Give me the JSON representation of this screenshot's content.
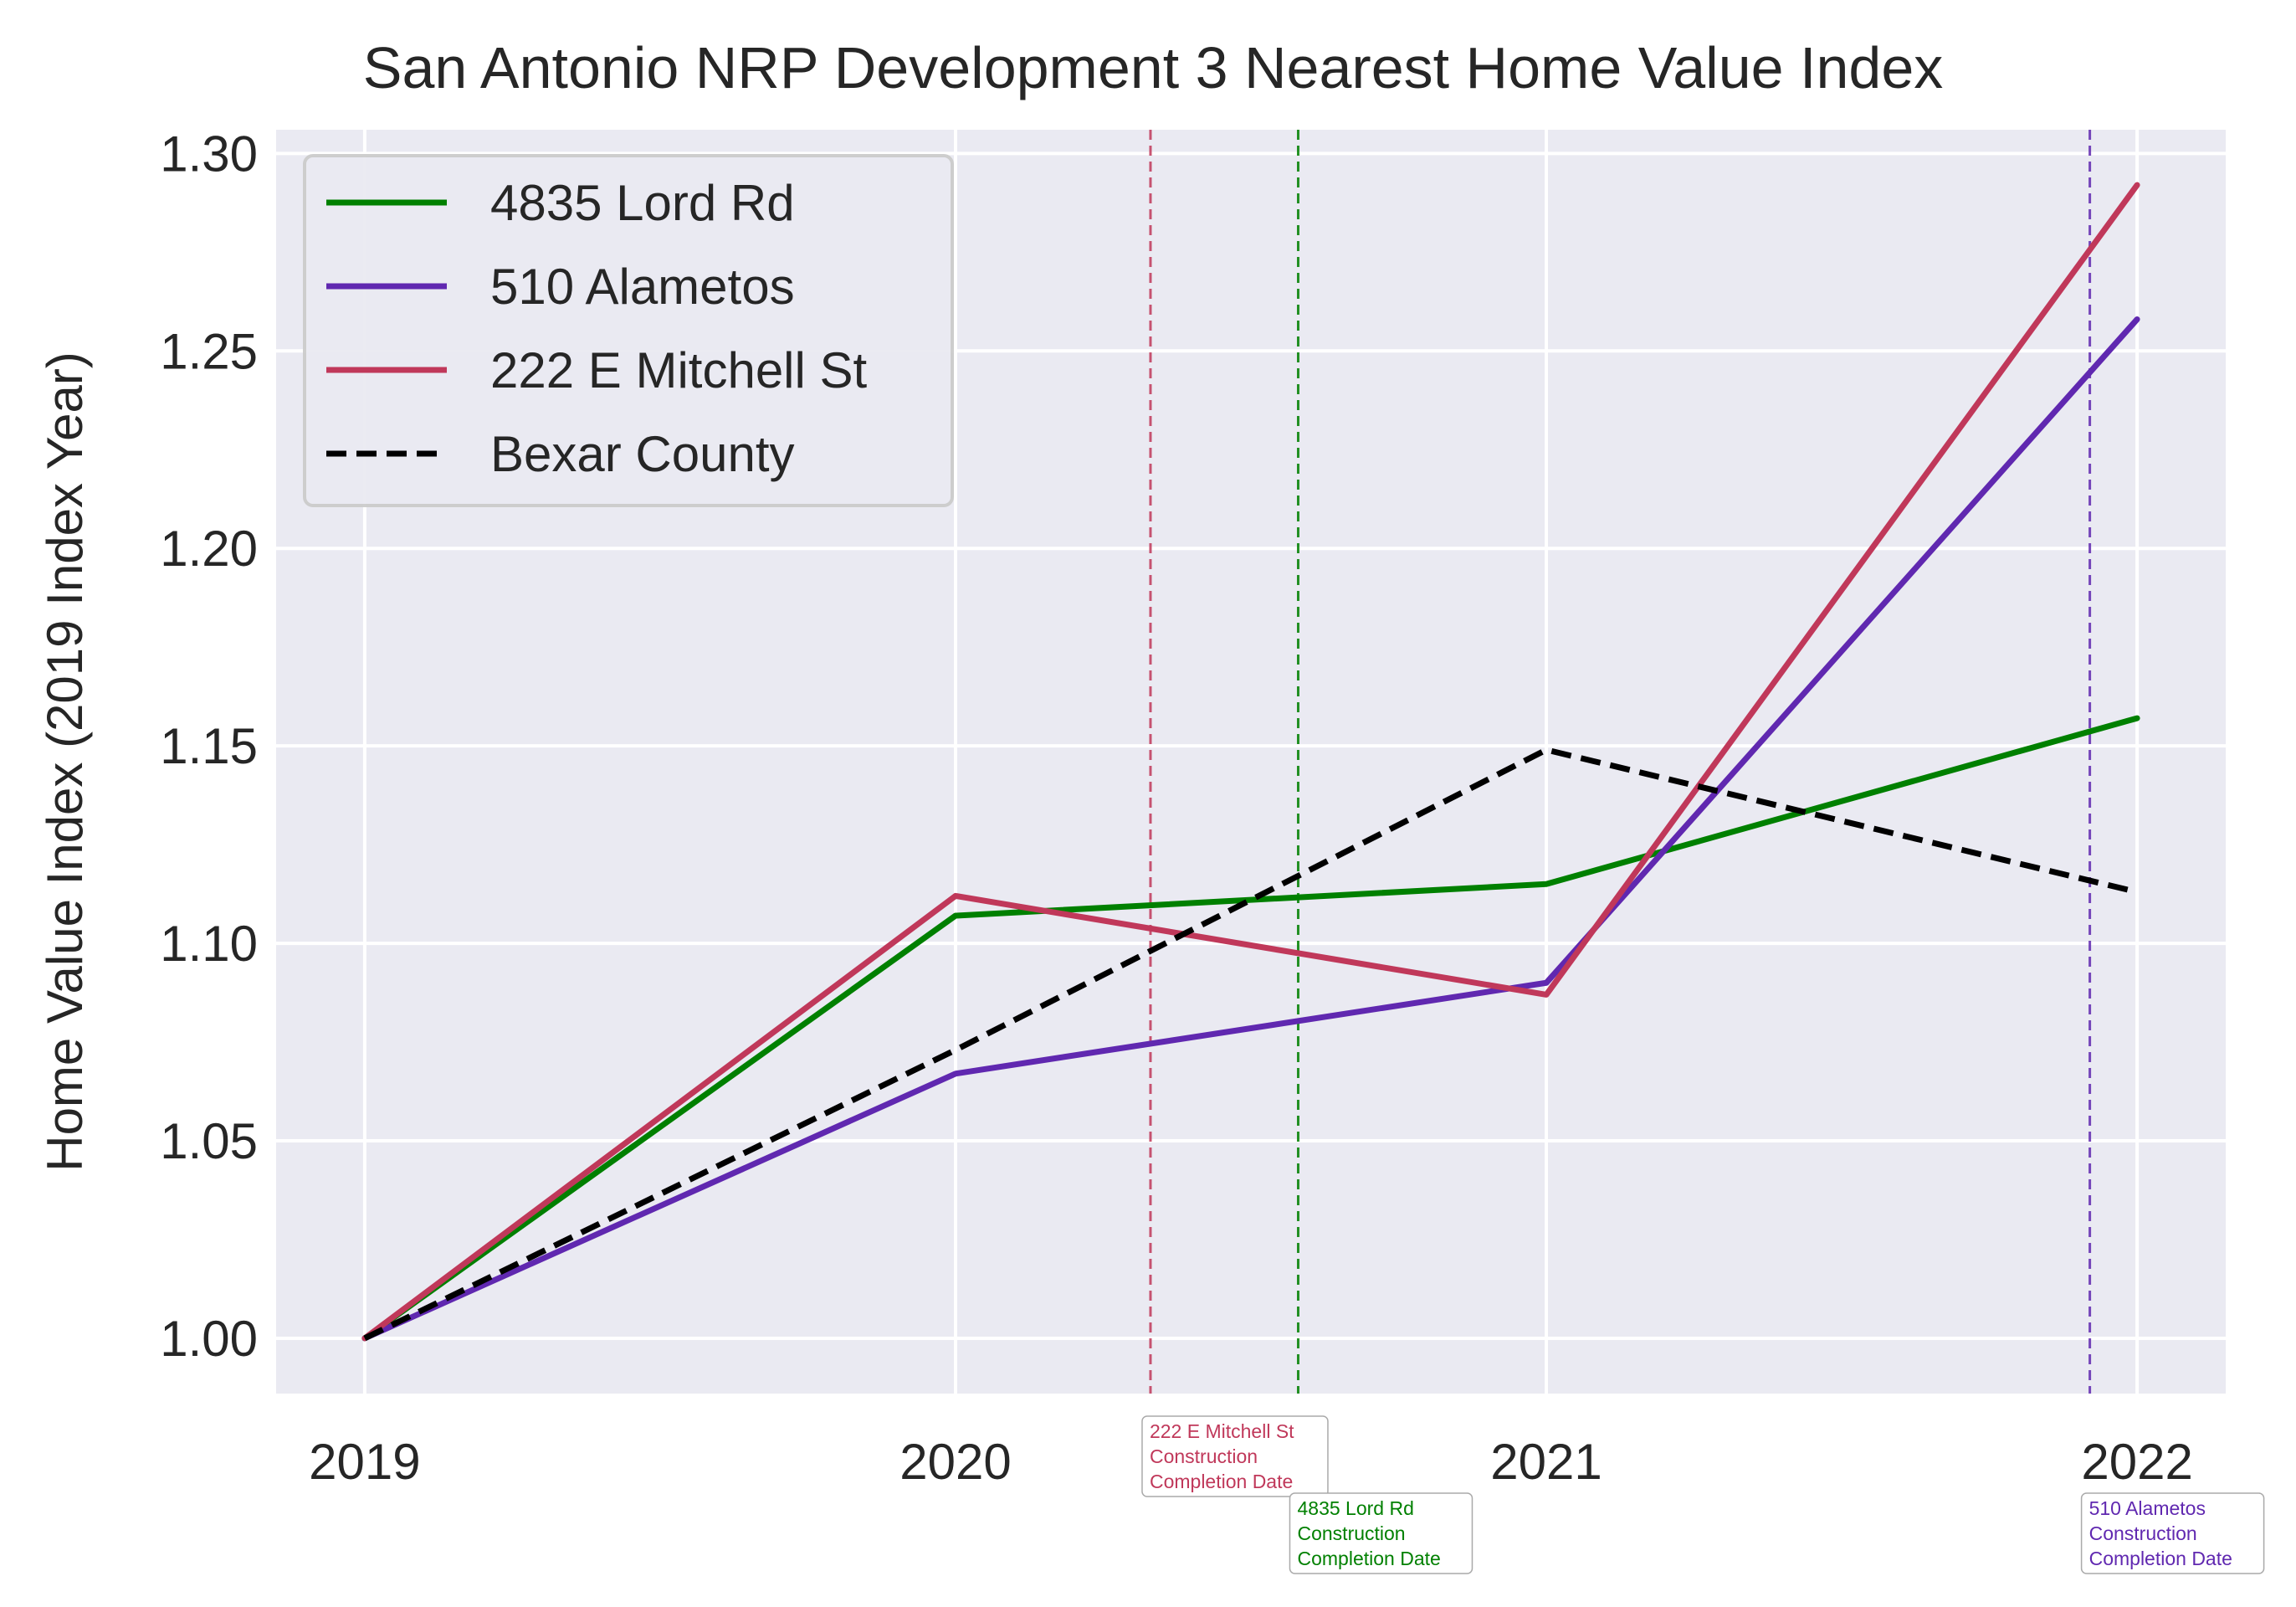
{
  "chart_data": {
    "type": "line",
    "title": "San Antonio NRP Development 3 Nearest Home Value Index",
    "xlabel": "",
    "ylabel": "Home Value Index (2019 Index Year)",
    "x": [
      2019,
      2020,
      2021,
      2022
    ],
    "xticks": [
      "2019",
      "2020",
      "2021",
      "2022"
    ],
    "yticks": [
      "1.00",
      "1.05",
      "1.10",
      "1.15",
      "1.20",
      "1.25",
      "1.30"
    ],
    "xlim": [
      2018.85,
      2022.15
    ],
    "ylim": [
      0.986,
      1.306
    ],
    "grid": true,
    "legend_position": "top-left",
    "series": [
      {
        "name": "4835 Lord Rd",
        "color": "#008000",
        "dash": "solid",
        "values": [
          1.0,
          1.107,
          1.115,
          1.157
        ]
      },
      {
        "name": "510 Alametos",
        "color": "#6028b0",
        "dash": "solid",
        "values": [
          1.0,
          1.067,
          1.09,
          1.258
        ]
      },
      {
        "name": "222 E Mitchell St",
        "color": "#c0385a",
        "dash": "solid",
        "values": [
          1.0,
          1.112,
          1.087,
          1.292
        ]
      },
      {
        "name": "Bexar County",
        "color": "#000000",
        "dash": "dashed",
        "values": [
          1.0,
          1.073,
          1.149,
          1.113
        ]
      }
    ],
    "annotations": [
      {
        "series": "222 E Mitchell St",
        "x": 2020.33,
        "color": "#c0385a",
        "lines": [
          "222 E Mitchell St",
          "Construction",
          "Completion Date"
        ],
        "row": 0
      },
      {
        "series": "4835 Lord Rd",
        "x": 2020.58,
        "color": "#008000",
        "lines": [
          "4835 Lord Rd",
          "Construction",
          "Completion Date"
        ],
        "row": 1
      },
      {
        "series": "510 Alametos",
        "x": 2021.92,
        "color": "#6028b0",
        "lines": [
          "510 Alametos",
          "Construction",
          "Completion Date"
        ],
        "row": 1
      }
    ]
  }
}
